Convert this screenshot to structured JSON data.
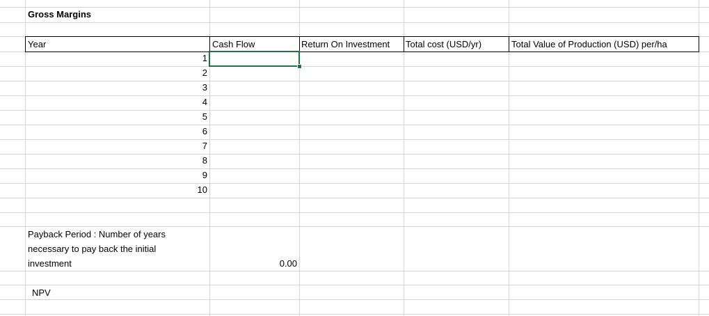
{
  "sheet": {
    "title": "Gross Margins",
    "headers": {
      "year": "Year",
      "cash_flow": "Cash Flow",
      "roi": "Return On Investment",
      "total_cost": "Total cost (USD/yr)",
      "total_value": "Total Value of Production (USD) per/ha"
    },
    "years": [
      "1",
      "2",
      "3",
      "4",
      "5",
      "6",
      "7",
      "8",
      "9",
      "10"
    ],
    "payback": {
      "label": "Payback Period : Number of years necessary to pay back the initial investment",
      "value": "0.00"
    },
    "npv": {
      "label": "NPV"
    },
    "colors": {
      "gridline": "#d4d4d4",
      "selection": "#217346"
    }
  }
}
